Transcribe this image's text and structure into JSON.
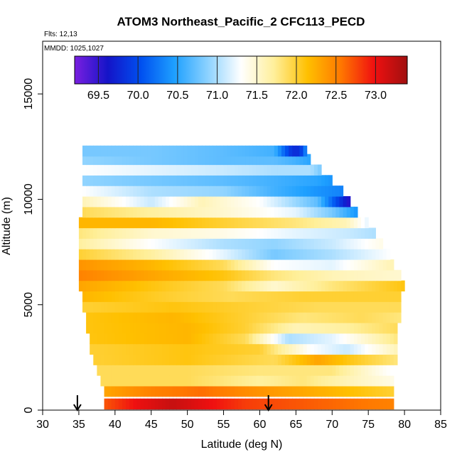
{
  "chart_data": {
    "type": "heatmap",
    "title": "ATOM3 Northeast_Pacific_2 CFC113_PECD",
    "flights_label": "Flts: 12,13",
    "dates_label": "MMDD: 1025,1027",
    "xlabel": "Latitude (deg N)",
    "ylabel": "Altitude (m)",
    "xlim": [
      30,
      85
    ],
    "ylim": [
      0,
      17500
    ],
    "x_ticks": [
      "30",
      "35",
      "40",
      "45",
      "50",
      "55",
      "60",
      "65",
      "70",
      "75",
      "80",
      "85"
    ],
    "y_ticks": [
      "0",
      "5000",
      "10000",
      "15000"
    ],
    "colorbar": {
      "min": 69.2,
      "max": 73.4,
      "tick_labels": [
        "69.5",
        "70.0",
        "70.5",
        "71.0",
        "71.5",
        "72.0",
        "72.5",
        "73.0"
      ],
      "colors": [
        "#7a1fe0",
        "#1414c8",
        "#0050f0",
        "#1ea0ff",
        "#8cd2ff",
        "#ffffff",
        "#ffef9a",
        "#ffc000",
        "#ff7800",
        "#f01010",
        "#a01010"
      ]
    },
    "arrows_latitude": [
      34.8,
      61.2
    ],
    "profile_layers": [
      {
        "alt": 300,
        "lat_range": [
          38.5,
          78.5
        ],
        "values": [
          [
            38.5,
            72.7
          ],
          [
            43,
            73.0
          ],
          [
            48,
            73.2
          ],
          [
            53,
            73.0
          ],
          [
            58,
            72.8
          ],
          [
            65,
            72.7
          ],
          [
            72,
            72.6
          ],
          [
            78.5,
            72.5
          ]
        ]
      },
      {
        "alt": 900,
        "lat_range": [
          38.5,
          78.5
        ],
        "values": [
          [
            38.5,
            72.3
          ],
          [
            45,
            72.5
          ],
          [
            52,
            72.6
          ],
          [
            60,
            72.4
          ],
          [
            70,
            72.2
          ],
          [
            78.5,
            72.0
          ]
        ]
      },
      {
        "alt": 1400,
        "lat_range": [
          38.0,
          78.5
        ],
        "values": [
          [
            38,
            71.9
          ],
          [
            50,
            71.9
          ],
          [
            60,
            71.7
          ],
          [
            66,
            71.8
          ],
          [
            72,
            71.6
          ],
          [
            78.5,
            71.4
          ]
        ]
      },
      {
        "alt": 1900,
        "lat_range": [
          37.5,
          79.0
        ],
        "values": [
          [
            37.5,
            71.9
          ],
          [
            50,
            71.9
          ],
          [
            60,
            71.8
          ],
          [
            70,
            71.8
          ],
          [
            78,
            71.3
          ]
        ]
      },
      {
        "alt": 2400,
        "lat_range": [
          37.0,
          79.0
        ],
        "values": [
          [
            37,
            72.0
          ],
          [
            50,
            72.1
          ],
          [
            62,
            71.9
          ],
          [
            68,
            72.3
          ],
          [
            72,
            72.1
          ],
          [
            79,
            71.8
          ]
        ]
      },
      {
        "alt": 2900,
        "lat_range": [
          36.5,
          79.0
        ],
        "values": [
          [
            36.5,
            72.0
          ],
          [
            50,
            72.1
          ],
          [
            60,
            72.0
          ],
          [
            67,
            71.3
          ],
          [
            72,
            71.1
          ],
          [
            79,
            71.6
          ]
        ]
      },
      {
        "alt": 3400,
        "lat_range": [
          36.5,
          79.0
        ],
        "values": [
          [
            36.5,
            72.1
          ],
          [
            50,
            72.2
          ],
          [
            58,
            71.9
          ],
          [
            64,
            71.0
          ],
          [
            70,
            71.2
          ],
          [
            79,
            71.8
          ]
        ]
      },
      {
        "alt": 3900,
        "lat_range": [
          36.0,
          79.0
        ],
        "values": [
          [
            36,
            72.1
          ],
          [
            50,
            72.2
          ],
          [
            58,
            72.0
          ],
          [
            65,
            71.6
          ],
          [
            72,
            71.7
          ],
          [
            79,
            71.9
          ]
        ]
      },
      {
        "alt": 4400,
        "lat_range": [
          36.0,
          79.5
        ],
        "values": [
          [
            36,
            72.1
          ],
          [
            48,
            72.2
          ],
          [
            58,
            72.0
          ],
          [
            66,
            71.8
          ],
          [
            74,
            71.9
          ],
          [
            79.5,
            71.8
          ]
        ]
      },
      {
        "alt": 4900,
        "lat_range": [
          35.5,
          79.5
        ],
        "values": [
          [
            35.5,
            72.0
          ],
          [
            48,
            72.1
          ],
          [
            58,
            72.0
          ],
          [
            68,
            71.9
          ],
          [
            79.5,
            71.9
          ]
        ]
      },
      {
        "alt": 5400,
        "lat_range": [
          35.5,
          79.5
        ],
        "values": [
          [
            35.5,
            72.2
          ],
          [
            48,
            72.0
          ],
          [
            56,
            71.9
          ],
          [
            66,
            72.0
          ],
          [
            79.5,
            72.0
          ]
        ]
      },
      {
        "alt": 5900,
        "lat_range": [
          35.0,
          80.0
        ],
        "values": [
          [
            35,
            72.3
          ],
          [
            45,
            72.1
          ],
          [
            55,
            71.9
          ],
          [
            62,
            71.5
          ],
          [
            70,
            71.8
          ],
          [
            80,
            72.1
          ]
        ]
      },
      {
        "alt": 6400,
        "lat_range": [
          35.0,
          79.5
        ],
        "values": [
          [
            35,
            72.5
          ],
          [
            45,
            72.3
          ],
          [
            55,
            72.1
          ],
          [
            62,
            71.8
          ],
          [
            70,
            71.6
          ],
          [
            79,
            71.5
          ]
        ]
      },
      {
        "alt": 6900,
        "lat_range": [
          35.0,
          78.5
        ],
        "values": [
          [
            35,
            72.4
          ],
          [
            45,
            72.2
          ],
          [
            55,
            71.9
          ],
          [
            62,
            71.3
          ],
          [
            70,
            71.2
          ],
          [
            78,
            71.6
          ]
        ]
      },
      {
        "alt": 7400,
        "lat_range": [
          35.0,
          78.0
        ],
        "values": [
          [
            35,
            72.0
          ],
          [
            45,
            71.7
          ],
          [
            55,
            71.2
          ],
          [
            62,
            70.8
          ],
          [
            70,
            71.0
          ],
          [
            78,
            71.3
          ]
        ]
      },
      {
        "alt": 7900,
        "lat_range": [
          35.0,
          77.0
        ],
        "values": [
          [
            35,
            71.7
          ],
          [
            45,
            71.3
          ],
          [
            55,
            71.0
          ],
          [
            62,
            70.9
          ],
          [
            70,
            71.1
          ],
          [
            77,
            71.4
          ]
        ]
      },
      {
        "alt": 8400,
        "lat_range": [
          35.0,
          76.0
        ],
        "values": [
          [
            35,
            71.8
          ],
          [
            45,
            71.5
          ],
          [
            55,
            71.4
          ],
          [
            65,
            71.2
          ],
          [
            72,
            71.1
          ],
          [
            76,
            71.0
          ]
        ]
      },
      {
        "alt": 8900,
        "lat_range": [
          35.0,
          75.0
        ],
        "values": [
          [
            35,
            72.2
          ],
          [
            45,
            72.2
          ],
          [
            55,
            72.0
          ],
          [
            65,
            71.8
          ],
          [
            72,
            71.6
          ],
          [
            75,
            71.2
          ]
        ]
      },
      {
        "alt": 9400,
        "lat_range": [
          35.5,
          73.5
        ],
        "values": [
          [
            35.5,
            71.9
          ],
          [
            45,
            71.7
          ],
          [
            55,
            71.5
          ],
          [
            65,
            71.2
          ],
          [
            70,
            70.8
          ],
          [
            73.5,
            70.4
          ]
        ]
      },
      {
        "alt": 9900,
        "lat_range": [
          35.5,
          72.5
        ],
        "values": [
          [
            35.5,
            71.6
          ],
          [
            45,
            71.1
          ],
          [
            52,
            71.6
          ],
          [
            60,
            71.3
          ],
          [
            68,
            70.7
          ],
          [
            72.5,
            69.5
          ]
        ]
      },
      {
        "alt": 10400,
        "lat_range": [
          35.5,
          71.5
        ],
        "values": [
          [
            35.5,
            71.3
          ],
          [
            45,
            71.0
          ],
          [
            55,
            70.9
          ],
          [
            62,
            70.6
          ],
          [
            68,
            70.4
          ],
          [
            71.5,
            70.3
          ]
        ]
      },
      {
        "alt": 10900,
        "lat_range": [
          35.5,
          70.0
        ],
        "values": [
          [
            35.5,
            70.9
          ],
          [
            45,
            70.8
          ],
          [
            55,
            70.7
          ],
          [
            62,
            70.6
          ],
          [
            68,
            70.5
          ],
          [
            70,
            70.4
          ]
        ]
      },
      {
        "alt": 11400,
        "lat_range": [
          35.5,
          68.5
        ],
        "values": [
          [
            35.5,
            71.3
          ],
          [
            45,
            71.2
          ],
          [
            55,
            71.1
          ],
          [
            62,
            71.0
          ],
          [
            67,
            71.0
          ],
          [
            68.5,
            70.8
          ]
        ]
      },
      {
        "alt": 11900,
        "lat_range": [
          35.5,
          67.0
        ],
        "values": [
          [
            35.5,
            70.9
          ],
          [
            45,
            70.8
          ],
          [
            55,
            70.7
          ],
          [
            62,
            70.7
          ],
          [
            65,
            70.6
          ],
          [
            67,
            70.5
          ]
        ]
      },
      {
        "alt": 12300,
        "lat_range": [
          35.5,
          66.5
        ],
        "values": [
          [
            35.5,
            70.8
          ],
          [
            45,
            70.8
          ],
          [
            55,
            70.7
          ],
          [
            62,
            70.6
          ],
          [
            64.5,
            69.8
          ],
          [
            65.5,
            69.8
          ],
          [
            66.5,
            70.4
          ]
        ]
      }
    ]
  }
}
